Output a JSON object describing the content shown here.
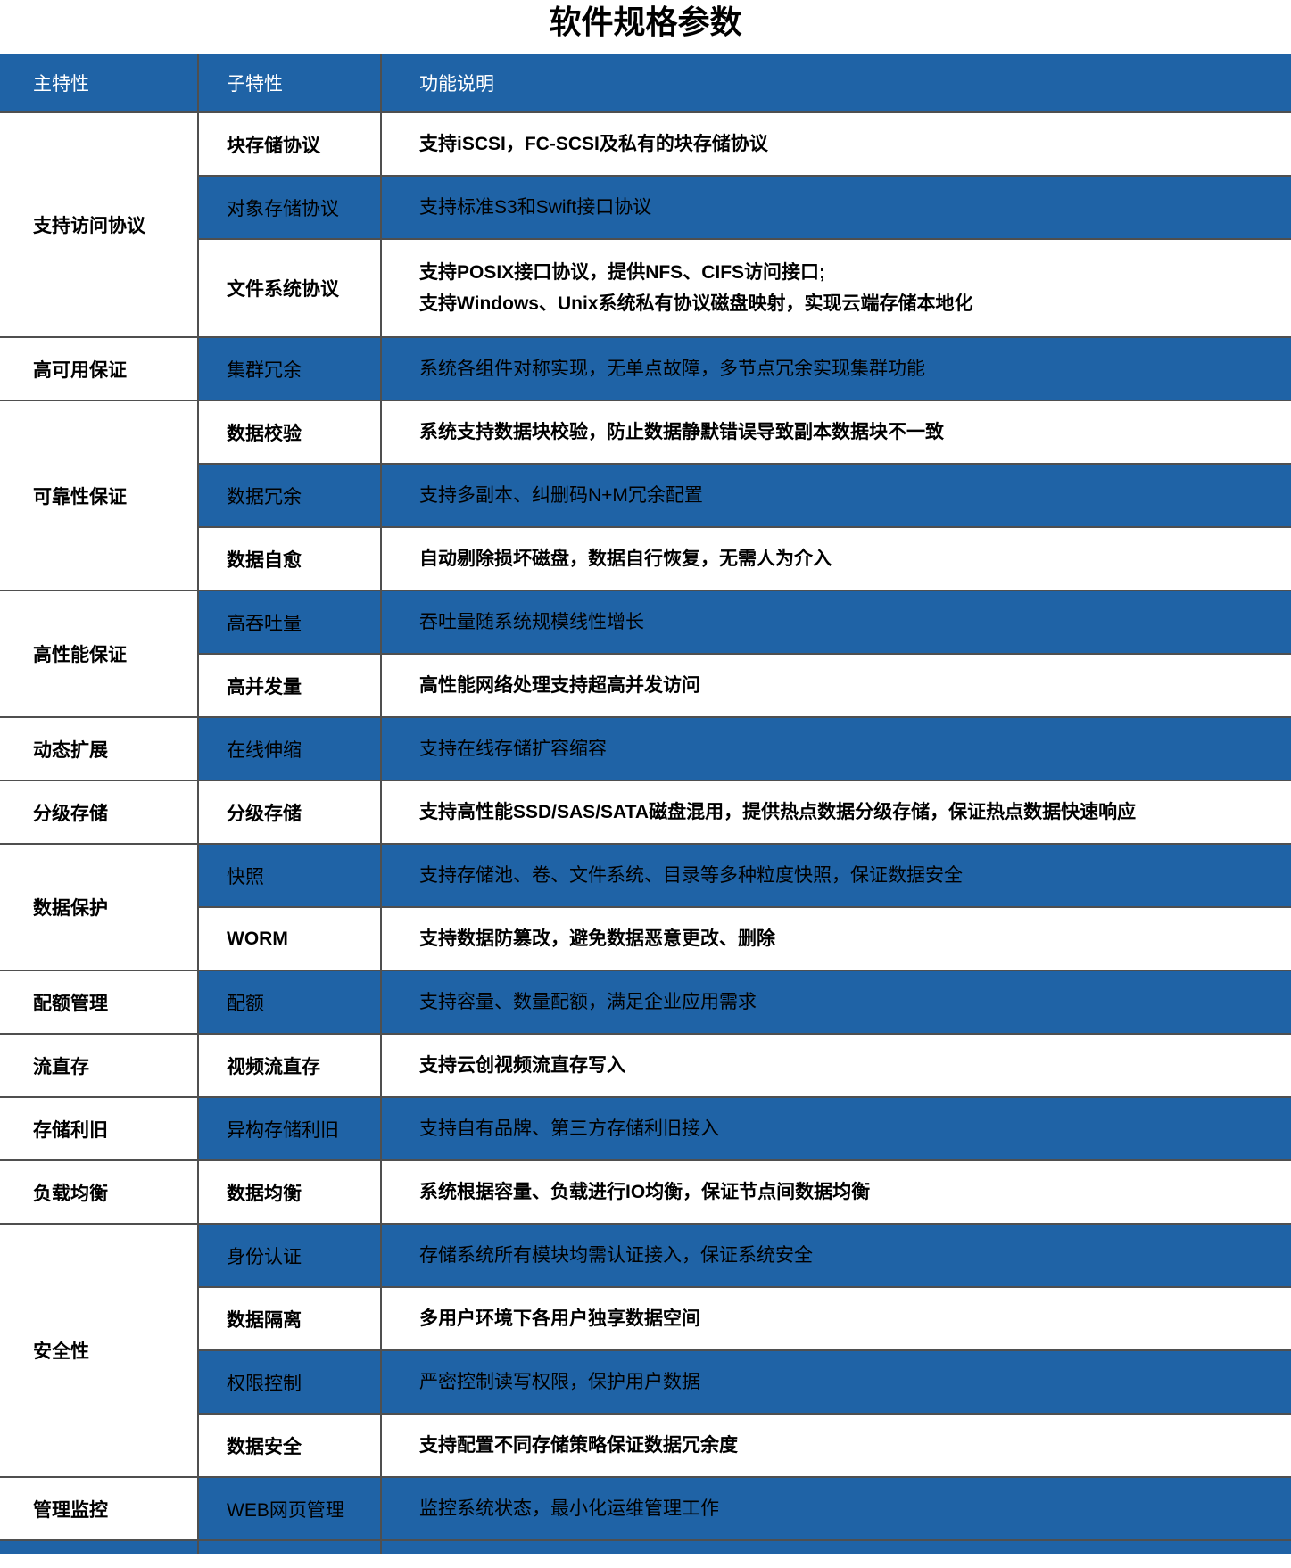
{
  "title": "软件规格参数",
  "colors": {
    "blue": "#1F63A6",
    "separator_line": "#4F4F4F",
    "header_text": "#FFFFFF",
    "body_text": "#000000"
  },
  "table": {
    "headers": [
      "主特性",
      "子特性",
      "功能说明"
    ],
    "groups": [
      {
        "feature": "支持访问协议",
        "rows": [
          {
            "sub": "块存储协议",
            "desc": [
              "支持iSCSI，FC-SCSI及私有的块存储协议"
            ],
            "shade": "white"
          },
          {
            "sub": "对象存储协议",
            "desc": [
              "支持标准S3和Swift接口协议"
            ],
            "shade": "blue"
          },
          {
            "sub": "文件系统协议",
            "desc": [
              "支持POSIX接口协议，提供NFS、CIFS访问接口;",
              "支持Windows、Unix系统私有协议磁盘映射，实现云端存储本地化"
            ],
            "shade": "white"
          }
        ]
      },
      {
        "feature": "高可用保证",
        "rows": [
          {
            "sub": "集群冗余",
            "desc": [
              "系统各组件对称实现，无单点故障，多节点冗余实现集群功能"
            ],
            "shade": "blue"
          }
        ]
      },
      {
        "feature": "可靠性保证",
        "rows": [
          {
            "sub": "数据校验",
            "desc": [
              "系统支持数据块校验，防止数据静默错误导致副本数据块不一致"
            ],
            "shade": "white"
          },
          {
            "sub": "数据冗余",
            "desc": [
              "支持多副本、纠删码N+M冗余配置"
            ],
            "shade": "blue"
          },
          {
            "sub": "数据自愈",
            "desc": [
              "自动剔除损坏磁盘，数据自行恢复，无需人为介入"
            ],
            "shade": "white"
          }
        ]
      },
      {
        "feature": "高性能保证",
        "rows": [
          {
            "sub": "高吞吐量",
            "desc": [
              "吞吐量随系统规模线性增长"
            ],
            "shade": "blue"
          },
          {
            "sub": "高并发量",
            "desc": [
              "高性能网络处理支持超高并发访问"
            ],
            "shade": "white"
          }
        ]
      },
      {
        "feature": "动态扩展",
        "rows": [
          {
            "sub": "在线伸缩",
            "desc": [
              "支持在线存储扩容缩容"
            ],
            "shade": "blue"
          }
        ]
      },
      {
        "feature": "分级存储",
        "rows": [
          {
            "sub": "分级存储",
            "desc": [
              "支持高性能SSD/SAS/SATA磁盘混用，提供热点数据分级存储，保证热点数据快速响应"
            ],
            "shade": "white"
          }
        ]
      },
      {
        "feature": "数据保护",
        "rows": [
          {
            "sub": "快照",
            "desc": [
              "支持存储池、卷、文件系统、目录等多种粒度快照，保证数据安全"
            ],
            "shade": "blue"
          },
          {
            "sub": "WORM",
            "desc": [
              "支持数据防篡改，避免数据恶意更改、删除"
            ],
            "shade": "white"
          }
        ]
      },
      {
        "feature": "配额管理",
        "rows": [
          {
            "sub": "配额",
            "desc": [
              "支持容量、数量配额，满足企业应用需求"
            ],
            "shade": "blue"
          }
        ]
      },
      {
        "feature": "流直存",
        "rows": [
          {
            "sub": "视频流直存",
            "desc": [
              "支持云创视频流直存写入"
            ],
            "shade": "white"
          }
        ]
      },
      {
        "feature": "存储利旧",
        "rows": [
          {
            "sub": "异构存储利旧",
            "desc": [
              "支持自有品牌、第三方存储利旧接入"
            ],
            "shade": "blue"
          }
        ]
      },
      {
        "feature": "负载均衡",
        "rows": [
          {
            "sub": "数据均衡",
            "desc": [
              "系统根据容量、负载进行IO均衡，保证节点间数据均衡"
            ],
            "shade": "white"
          }
        ]
      },
      {
        "feature": "安全性",
        "rows": [
          {
            "sub": "身份认证",
            "desc": [
              "存储系统所有模块均需认证接入，保证系统安全"
            ],
            "shade": "blue"
          },
          {
            "sub": "数据隔离",
            "desc": [
              "多用户环境下各用户独享数据空间"
            ],
            "shade": "white"
          },
          {
            "sub": "权限控制",
            "desc": [
              "严密控制读写权限，保护用户数据"
            ],
            "shade": "blue"
          },
          {
            "sub": "数据安全",
            "desc": [
              "支持配置不同存储策略保证数据冗余度"
            ],
            "shade": "white"
          }
        ]
      },
      {
        "feature": "管理监控",
        "rows": [
          {
            "sub": "WEB网页管理",
            "desc": [
              "监控系统状态，最小化运维管理工作"
            ],
            "shade": "blue"
          }
        ]
      }
    ]
  }
}
